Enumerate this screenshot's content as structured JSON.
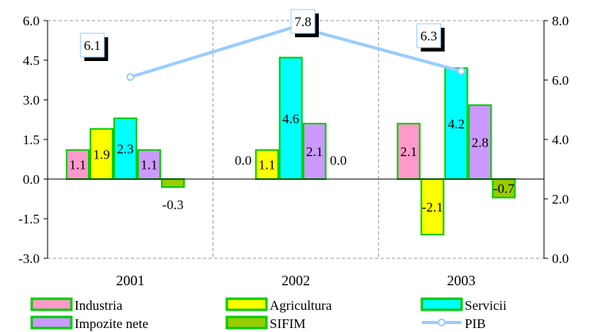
{
  "chart_data": {
    "type": "bar",
    "categories": [
      "2001",
      "2002",
      "2003"
    ],
    "series": [
      {
        "name": "Industria",
        "values": [
          1.1,
          0.0,
          2.1
        ],
        "color": "#FF99CC"
      },
      {
        "name": "Agricultura",
        "values": [
          1.9,
          1.1,
          -2.1
        ],
        "color": "#FFFF00"
      },
      {
        "name": "Servicii",
        "values": [
          2.3,
          4.6,
          4.2
        ],
        "color": "#00FFFF"
      },
      {
        "name": "Impozite nete",
        "values": [
          1.1,
          2.1,
          2.8
        ],
        "color": "#CC99FF"
      },
      {
        "name": "SIFIM",
        "values": [
          -0.3,
          0.0,
          -0.7
        ],
        "color": "#99CC00"
      }
    ],
    "line_series": {
      "name": "PIB",
      "values": [
        6.1,
        7.8,
        6.3
      ],
      "color": "#99CCFF",
      "axis": "right"
    },
    "bar_labels": [
      [
        "1.1",
        "1.9",
        "2.3",
        "1.1",
        "-0.3"
      ],
      [
        "0.0",
        "1.1",
        "4.6",
        "2.1",
        "0.0"
      ],
      [
        "2.1",
        "-2.1",
        "4.2",
        "2.8",
        "-0.7"
      ]
    ],
    "line_labels": [
      "6.1",
      "7.8",
      "6.3"
    ],
    "y_left": {
      "min": -3.0,
      "max": 6.0,
      "ticks": [
        "-3.0",
        "-1.5",
        "0.0",
        "1.5",
        "3.0",
        "4.5",
        "6.0"
      ]
    },
    "y_right": {
      "min": 0.0,
      "max": 8.0,
      "ticks": [
        "0.0",
        "2.0",
        "4.0",
        "6.0",
        "8.0"
      ]
    },
    "bar_border_color": "#00CC00",
    "legend_position": "bottom",
    "grid": "vertical-dashed"
  }
}
